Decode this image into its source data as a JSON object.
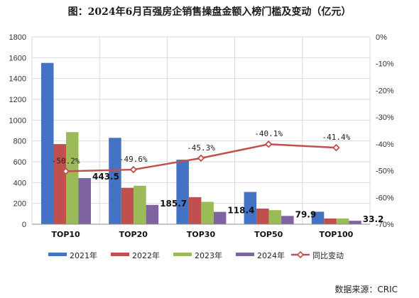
{
  "chart_data": {
    "type": "bar",
    "title": "图：2024年6月百强房企销售操盘金额入榜门槛及变动（亿元）",
    "categories": [
      "TOP10",
      "TOP20",
      "TOP30",
      "TOP50",
      "TOP100"
    ],
    "series": [
      {
        "name": "2021年",
        "color": "#4472C4",
        "values": [
          1550,
          830,
          620,
          310,
          120
        ]
      },
      {
        "name": "2022年",
        "color": "#C0504D",
        "values": [
          770,
          350,
          260,
          150,
          55
        ]
      },
      {
        "name": "2023年",
        "color": "#9BBB59",
        "values": [
          885,
          370,
          215,
          135,
          55
        ]
      },
      {
        "name": "2024年",
        "color": "#8064A2",
        "values": [
          443.5,
          185.7,
          118.4,
          79.9,
          33.2
        ]
      }
    ],
    "line_series": {
      "name": "同比变动",
      "color": "#C0504D",
      "values": [
        -50.2,
        -49.6,
        -45.3,
        -40.1,
        -41.4
      ],
      "labels": [
        "-50.2%",
        "-49.6%",
        "-45.3%",
        "-40.1%",
        "-41.4%"
      ]
    },
    "data_labels": [
      "443.5",
      "185.7",
      "118.4",
      "79.9",
      "33.2"
    ],
    "y_left": {
      "min": 0,
      "max": 1800,
      "ticks": [
        "0",
        "200",
        "400",
        "600",
        "800",
        "1000",
        "1200",
        "1400",
        "1600",
        "1800"
      ]
    },
    "y_right": {
      "min": -70,
      "max": 0,
      "ticks": [
        "0%",
        "-10%",
        "-20%",
        "-30%",
        "-40%",
        "-50%",
        "-60%",
        "-70%"
      ]
    },
    "grid": true,
    "legend_position": "bottom",
    "source": "数据来源：CRIC"
  }
}
